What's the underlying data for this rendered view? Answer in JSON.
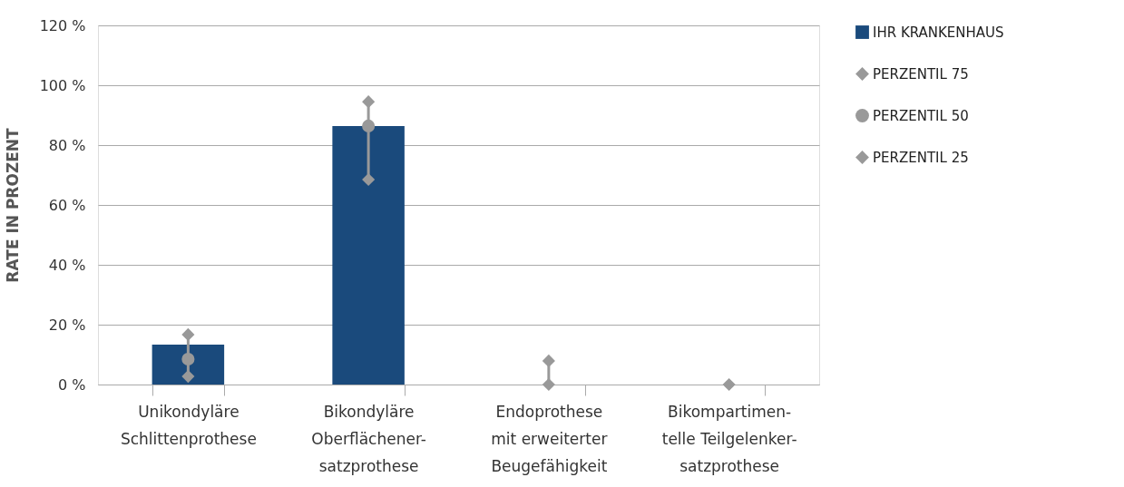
{
  "chart_data": {
    "type": "bar",
    "ylabel": "RATE IN PROZENT",
    "categories": [
      "Unikondyläre\nSchlittenprothese",
      "Bikondyläre\nOberflächener-\nsatzprothese",
      "Endoprothese\nmit erweiterter\nBeugefähigkeit",
      "Bikompartimen-\ntelle Teilgelenker-\nsatzprothese"
    ],
    "series": [
      {
        "name": "IHR KRANKENHAUS",
        "type": "bar",
        "color": "#1a4a7c",
        "values": [
          13.3,
          86.4,
          0,
          0
        ]
      },
      {
        "name": "PERZENTIL 75",
        "type": "scatter",
        "marker": "diamond",
        "color": "#999999",
        "values": [
          16.7,
          94.5,
          7.9,
          null
        ]
      },
      {
        "name": "PERZENTIL 50",
        "type": "scatter",
        "marker": "circle",
        "color": "#999999",
        "values": [
          8.5,
          86.4,
          null,
          null
        ]
      },
      {
        "name": "PERZENTIL 25",
        "type": "scatter",
        "marker": "diamond",
        "color": "#999999",
        "values": [
          2.7,
          68.5,
          0,
          0
        ]
      }
    ],
    "ylim": [
      0,
      120
    ],
    "yticks": [
      {
        "value": 0,
        "label": "0 %"
      },
      {
        "value": 20,
        "label": "20 %"
      },
      {
        "value": 40,
        "label": "40 %"
      },
      {
        "value": 60,
        "label": "60 %"
      },
      {
        "value": 80,
        "label": "80 %"
      },
      {
        "value": 100,
        "label": "100 %"
      },
      {
        "value": 120,
        "label": "120 %"
      }
    ],
    "grid": "y",
    "legend": "top right"
  }
}
